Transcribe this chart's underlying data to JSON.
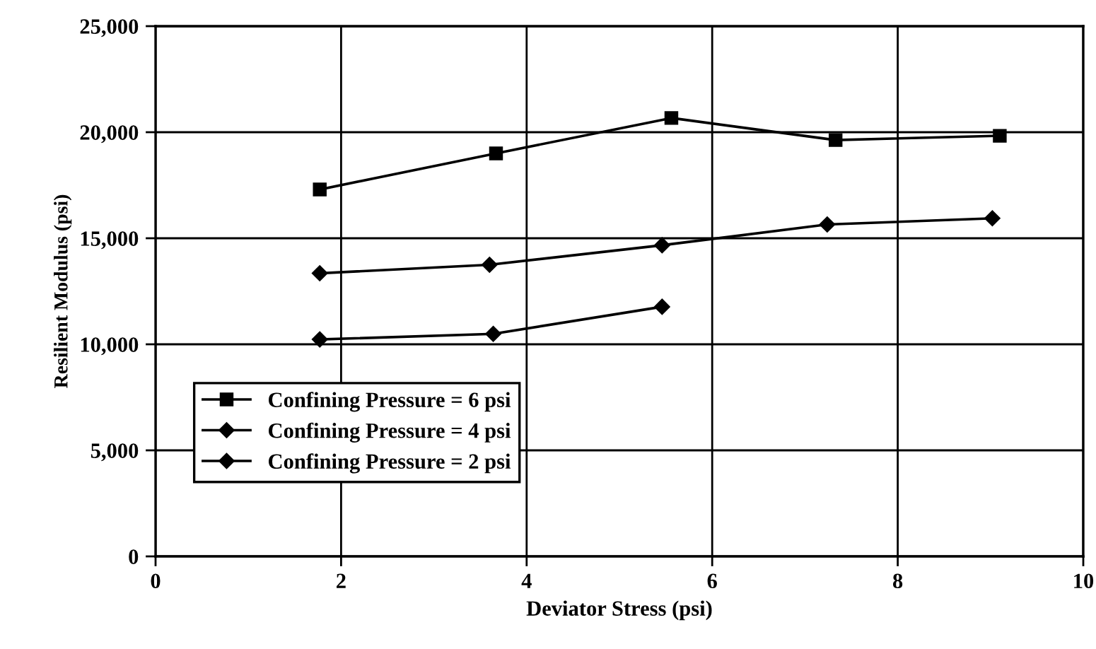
{
  "chart_data": {
    "type": "line",
    "xlabel": "Deviator Stress (psi)",
    "ylabel": "Resilient Modulus (psi)",
    "xlim": [
      0,
      10
    ],
    "xticks": [
      0,
      2,
      4,
      6,
      8,
      10
    ],
    "ylim": [
      0,
      25000
    ],
    "yticks": [
      {
        "value": 0,
        "label": "0"
      },
      {
        "value": 5000,
        "label": "5,000"
      },
      {
        "value": 10000,
        "label": "10,000"
      },
      {
        "value": 15000,
        "label": "15,000"
      },
      {
        "value": 20000,
        "label": "20,000"
      },
      {
        "value": 25000,
        "label": "25,000"
      }
    ],
    "grid": true,
    "legend": "bottom left",
    "line_style": "solid",
    "series": [
      {
        "name": "Confining Pressure = 6 psi",
        "color": "#000000",
        "marker": "square",
        "x": [
          1.77,
          3.67,
          5.56,
          7.33,
          9.1
        ],
        "values": [
          17300,
          19000,
          20670,
          19630,
          19830
        ]
      },
      {
        "name": "Confining Pressure = 4 psi",
        "color": "#000000",
        "marker": "diamond",
        "x": [
          1.77,
          3.6,
          5.46,
          7.24,
          9.02
        ],
        "values": [
          13350,
          13750,
          14670,
          15650,
          15940
        ]
      },
      {
        "name": "Confining Pressure = 2 psi",
        "color": "#000000",
        "marker": "diamond",
        "x": [
          1.77,
          3.64,
          5.46
        ],
        "values": [
          10230,
          10490,
          11770
        ]
      }
    ]
  }
}
